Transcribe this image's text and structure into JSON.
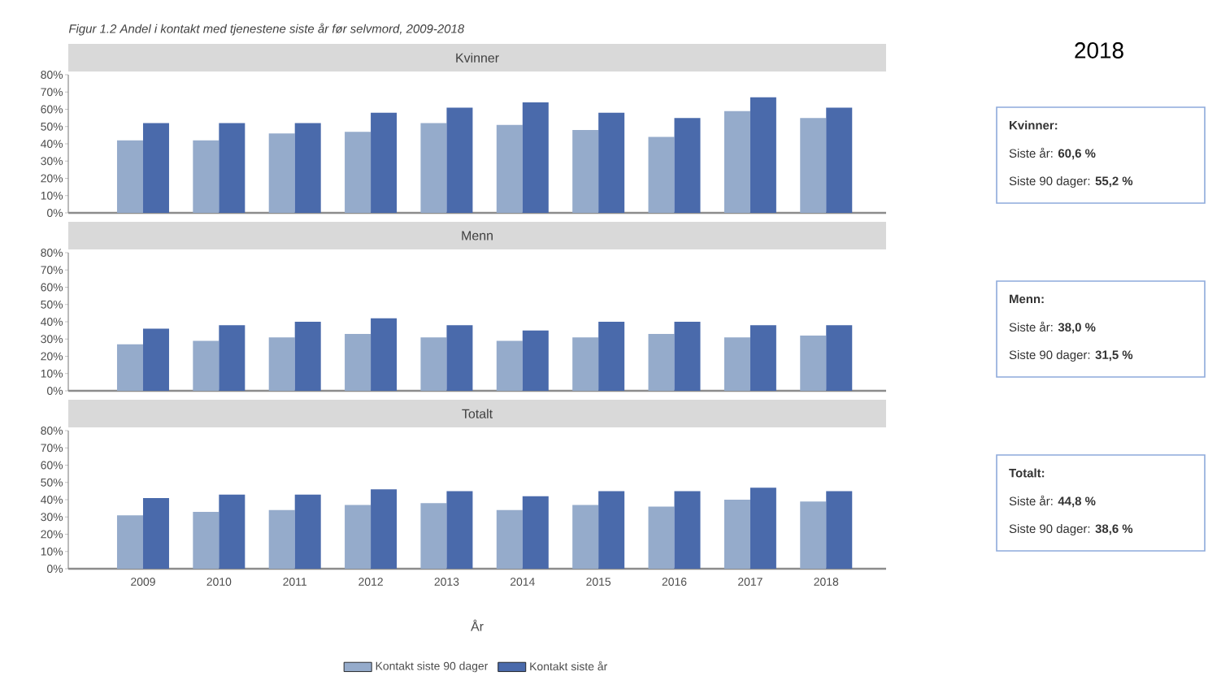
{
  "chart_data": [
    {
      "type": "bar",
      "title": "Figur 1.2 Andel i kontakt med tjenestene siste år før selvmord, 2009-2018",
      "subtitle": "Kvinner",
      "categories": [
        "2009",
        "2010",
        "2011",
        "2012",
        "2013",
        "2014",
        "2015",
        "2016",
        "2017",
        "2018"
      ],
      "series": [
        {
          "color": "#95abcb",
          "values": [
            42,
            42,
            46,
            47,
            52,
            51,
            48,
            44,
            59,
            55
          ]
        },
        {
          "color": "#4a6aab",
          "values": [
            52,
            52,
            52,
            58,
            61,
            64,
            58,
            55,
            67,
            61
          ]
        }
      ],
      "ylim": [
        0,
        80
      ],
      "yticks": [
        {
          "value": 0,
          "label": "0%"
        },
        {
          "value": 10,
          "label": "10%"
        },
        {
          "value": 20,
          "label": "20%"
        },
        {
          "value": 30,
          "label": "30%"
        },
        {
          "value": 40,
          "label": "40%"
        },
        {
          "value": 50,
          "label": "50%"
        },
        {
          "value": 60,
          "label": "60%"
        },
        {
          "value": 70,
          "label": "70%"
        },
        {
          "value": 80,
          "label": "80%"
        }
      ],
      "tick_labels": "y"
    },
    {
      "type": "bar",
      "subtitle": "Menn",
      "categories": [
        "2009",
        "2010",
        "2011",
        "2012",
        "2013",
        "2014",
        "2015",
        "2016",
        "2017",
        "2018"
      ],
      "series": [
        {
          "color": "#95abcb",
          "values": [
            27,
            29,
            31,
            33,
            31,
            29,
            31,
            33,
            31,
            32
          ]
        },
        {
          "color": "#4a6aab",
          "values": [
            36,
            38,
            40,
            42,
            38,
            35,
            40,
            40,
            38,
            38
          ]
        }
      ],
      "ylim": [
        0,
        80
      ],
      "yticks": [
        {
          "value": 0,
          "label": "0%"
        },
        {
          "value": 10,
          "label": "10%"
        },
        {
          "value": 20,
          "label": "20%"
        },
        {
          "value": 30,
          "label": "30%"
        },
        {
          "value": 40,
          "label": "40%"
        },
        {
          "value": 50,
          "label": "50%"
        },
        {
          "value": 60,
          "label": "60%"
        },
        {
          "value": 70,
          "label": "70%"
        },
        {
          "value": 80,
          "label": "80%"
        }
      ],
      "tick_labels": "y"
    },
    {
      "type": "bar",
      "subtitle": "Totalt",
      "xlabel": "År",
      "categories": [
        "2009",
        "2010",
        "2011",
        "2012",
        "2013",
        "2014",
        "2015",
        "2016",
        "2017",
        "2018"
      ],
      "series": [
        {
          "name": "Kontakt siste 90 dager",
          "color": "#95abcb",
          "values": [
            31,
            33,
            34,
            37,
            38,
            34,
            37,
            36,
            40,
            39
          ]
        },
        {
          "name": "Kontakt siste år",
          "color": "#4a6aab",
          "values": [
            41,
            43,
            43,
            46,
            45,
            42,
            45,
            45,
            47,
            45
          ]
        }
      ],
      "ylim": [
        0,
        80
      ],
      "yticks": [
        {
          "value": 0,
          "label": "0%"
        },
        {
          "value": 10,
          "label": "10%"
        },
        {
          "value": 20,
          "label": "20%"
        },
        {
          "value": 30,
          "label": "30%"
        },
        {
          "value": 40,
          "label": "40%"
        },
        {
          "value": 50,
          "label": "50%"
        },
        {
          "value": 60,
          "label": "60%"
        },
        {
          "value": 70,
          "label": "70%"
        },
        {
          "value": 80,
          "label": "80%"
        }
      ],
      "legend": "bottom"
    },
    {
      "type": "other",
      "title": "2018",
      "annotations": [
        "Kvinner:",
        "Siste år: **60,6 %**",
        "Siste 90 dager: **55,2 %**",
        "Menn:",
        "Siste år: **38,0 %**",
        "Siste 90 dager: **31,5 %**",
        "Totalt:",
        "Siste år: **44,8 %**",
        "Siste 90 dager: **38,6 %**"
      ]
    }
  ]
}
